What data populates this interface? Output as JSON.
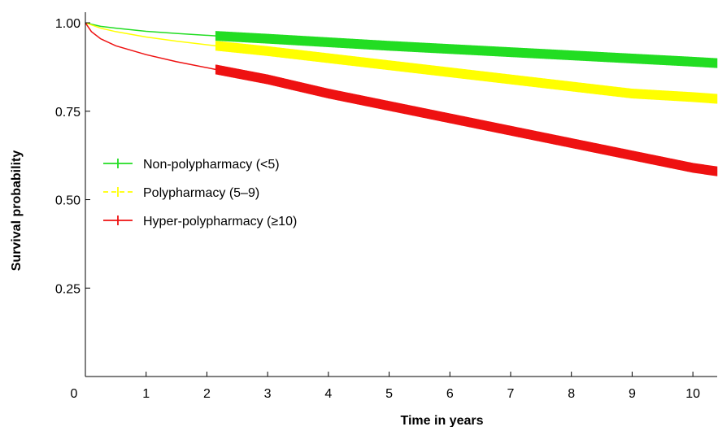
{
  "chart_data": {
    "type": "line",
    "title": "",
    "xlabel": "Time in years",
    "ylabel": "Survival probability",
    "xlim": [
      0,
      10.4
    ],
    "ylim": [
      0,
      1.03
    ],
    "x_ticks": [
      0,
      1,
      2,
      3,
      4,
      5,
      6,
      7,
      8,
      9,
      10
    ],
    "x_tick_labels": [
      "0",
      "1",
      "2",
      "3",
      "4",
      "5",
      "6",
      "7",
      "8",
      "9",
      "10"
    ],
    "y_ticks": [
      0.25,
      0.5,
      0.75,
      1.0
    ],
    "y_tick_labels": [
      "0.25",
      "0.50",
      "0.75",
      "1.00"
    ],
    "grid": false,
    "legend_position": "center-left",
    "series": [
      {
        "name": "Non-polypharmacy (<5)",
        "color": "#22dd22",
        "x": [
          0,
          0.25,
          0.5,
          1,
          1.5,
          2.15,
          3,
          4,
          5,
          6,
          7,
          8,
          9,
          10,
          10.4
        ],
        "y": [
          1.0,
          0.99,
          0.985,
          0.976,
          0.97,
          0.963,
          0.955,
          0.945,
          0.935,
          0.926,
          0.917,
          0.908,
          0.899,
          0.89,
          0.886
        ],
        "censor_start_x": 2.15
      },
      {
        "name": "Polypharmacy (5–9)",
        "color": "#ffff00",
        "x": [
          0,
          0.25,
          0.5,
          1,
          1.5,
          2.15,
          3,
          4,
          5,
          6,
          7,
          8,
          9,
          10,
          10.4
        ],
        "y": [
          1.0,
          0.985,
          0.975,
          0.96,
          0.948,
          0.935,
          0.92,
          0.9,
          0.88,
          0.86,
          0.84,
          0.82,
          0.8,
          0.79,
          0.785
        ],
        "censor_start_x": 2.15
      },
      {
        "name": "Hyper-polypharmacy (≥10)",
        "color": "#ee1111",
        "x": [
          0,
          0.1,
          0.25,
          0.5,
          1,
          1.5,
          2.15,
          3,
          4,
          5,
          6,
          7,
          8,
          9,
          10,
          10.4
        ],
        "y": [
          1.0,
          0.975,
          0.955,
          0.935,
          0.91,
          0.89,
          0.868,
          0.84,
          0.8,
          0.765,
          0.73,
          0.695,
          0.66,
          0.625,
          0.59,
          0.58
        ],
        "censor_start_x": 2.15
      }
    ]
  }
}
